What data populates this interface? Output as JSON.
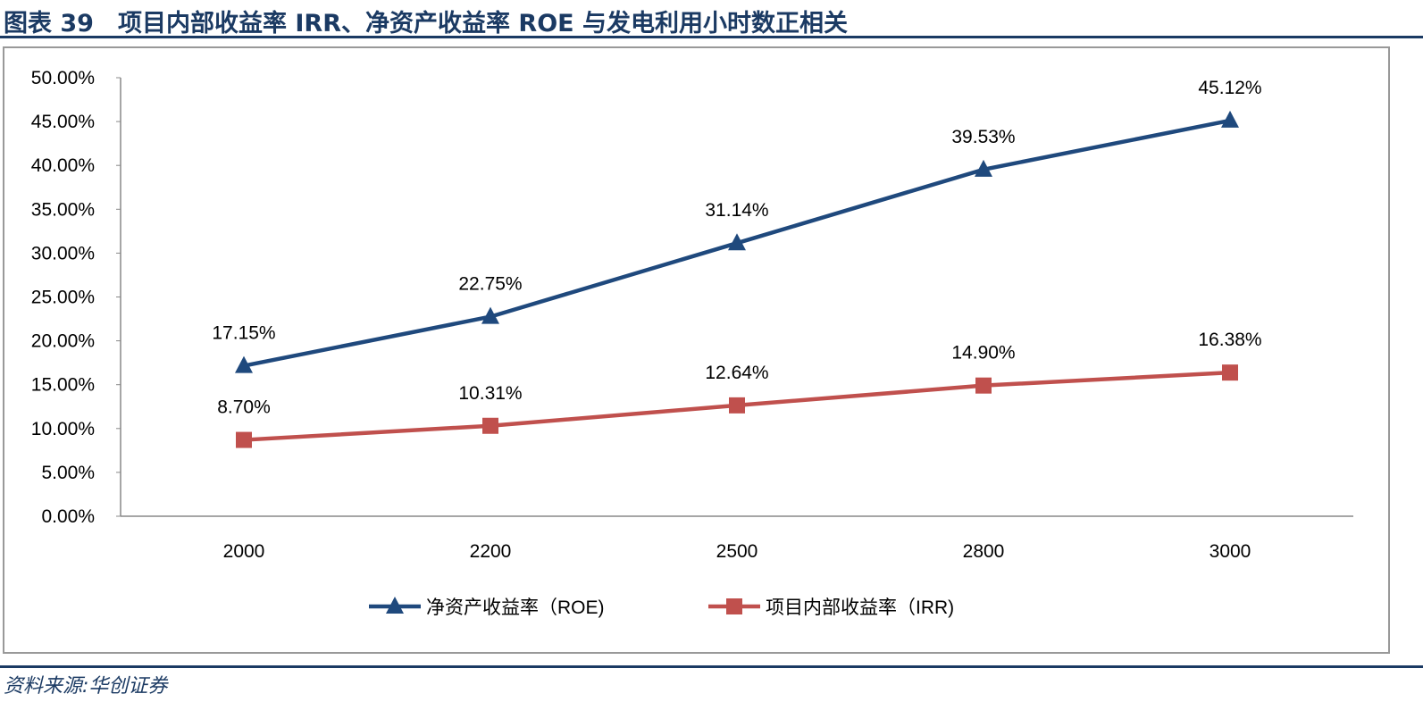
{
  "title": "图表 39　项目内部收益率 IRR、净资产收益率 ROE 与发电利用小时数正相关",
  "source": "资料来源:华创证券",
  "chart_data": {
    "type": "line",
    "title": "",
    "categories": [
      "2000",
      "2200",
      "2500",
      "2800",
      "3000"
    ],
    "ylim": [
      0,
      50
    ],
    "yticks": [
      "0.00%",
      "5.00%",
      "10.00%",
      "15.00%",
      "20.00%",
      "25.00%",
      "30.00%",
      "35.00%",
      "40.00%",
      "45.00%",
      "50.00%"
    ],
    "grid": false,
    "legend": "bottom",
    "series": [
      {
        "name": "净资产收益率（ROE)",
        "values": [
          17.15,
          22.75,
          31.14,
          39.53,
          45.12
        ],
        "labels": [
          "17.15%",
          "22.75%",
          "31.14%",
          "39.53%",
          "45.12%"
        ],
        "color": "#1f497d",
        "marker": "triangle"
      },
      {
        "name": "项目内部收益率（IRR)",
        "values": [
          8.7,
          10.31,
          12.64,
          14.9,
          16.38
        ],
        "labels": [
          "8.70%",
          "10.31%",
          "12.64%",
          "14.90%",
          "16.38%"
        ],
        "color": "#c0504d",
        "marker": "square"
      }
    ]
  }
}
